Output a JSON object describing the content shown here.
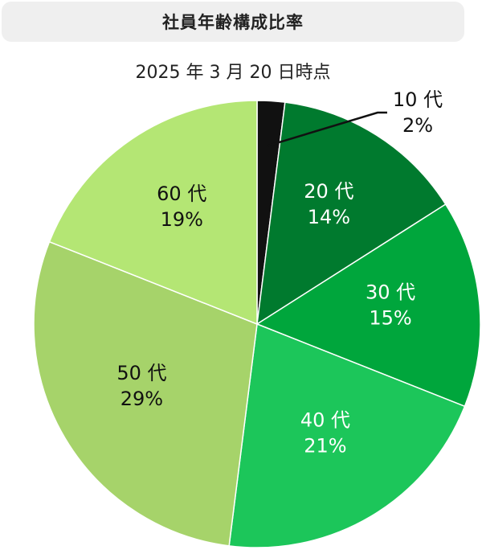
{
  "chart_data": {
    "type": "pie",
    "title": "社員年齢構成比率",
    "subtitle": "2025 年 3 月 20 日時点",
    "slices": [
      {
        "label": "10 代",
        "value": 2,
        "value_label": "2%",
        "color": "#111111",
        "text_color": "#111111"
      },
      {
        "label": "20 代",
        "value": 14,
        "value_label": "14%",
        "color": "#007A2E",
        "text_color": "#ffffff"
      },
      {
        "label": "30 代",
        "value": 15,
        "value_label": "15%",
        "color": "#00A63C",
        "text_color": "#ffffff"
      },
      {
        "label": "40 代",
        "value": 21,
        "value_label": "21%",
        "color": "#1CC65A",
        "text_color": "#ffffff"
      },
      {
        "label": "50 代",
        "value": 29,
        "value_label": "29%",
        "color": "#A6D36A",
        "text_color": "#111111"
      },
      {
        "label": "60 代",
        "value": 19,
        "value_label": "19%",
        "color": "#B4E674",
        "text_color": "#111111"
      }
    ]
  }
}
